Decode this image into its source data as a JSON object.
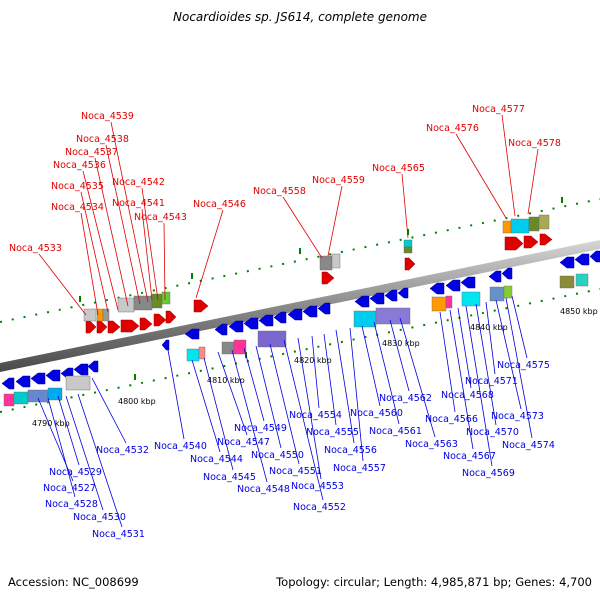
{
  "title": "Nocardioides sp. JS614, complete genome",
  "footer": {
    "accession": "Accession: NC_008699",
    "summary": "Topology: circular; Length: 4,985,871 bp; Genes: 4,700"
  },
  "colors": {
    "forward_strand": "#e00000",
    "reverse_strand": "#0000e0",
    "backbone": "#8a8a8a",
    "tick": "#008000"
  },
  "kbp_labels": [
    "4790 kbp",
    "4800 kbp",
    "4810 kbp",
    "4820 kbp",
    "4830 kbp",
    "4840 kbp",
    "4850 kbp"
  ],
  "forward_genes": [
    "Noca_4533",
    "Noca_4534",
    "Noca_4535",
    "Noca_4536",
    "Noca_4537",
    "Noca_4538",
    "Noca_4539",
    "Noca_4541",
    "Noca_4542",
    "Noca_4543",
    "Noca_4546",
    "Noca_4558",
    "Noca_4559",
    "Noca_4565",
    "Noca_4576",
    "Noca_4577",
    "Noca_4578"
  ],
  "reverse_genes": [
    "Noca_4527",
    "Noca_4528",
    "Noca_4529",
    "Noca_4530",
    "Noca_4531",
    "Noca_4532",
    "Noca_4540",
    "Noca_4544",
    "Noca_4545",
    "Noca_4547",
    "Noca_4548",
    "Noca_4549",
    "Noca_4550",
    "Noca_4551",
    "Noca_4552",
    "Noca_4553",
    "Noca_4554",
    "Noca_4555",
    "Noca_4556",
    "Noca_4557",
    "Noca_4560",
    "Noca_4561",
    "Noca_4562",
    "Noca_4563",
    "Noca_4566",
    "Noca_4567",
    "Noca_4568",
    "Noca_4569",
    "Noca_4570",
    "Noca_4571",
    "Noca_4573",
    "Noca_4574",
    "Noca_4575"
  ]
}
